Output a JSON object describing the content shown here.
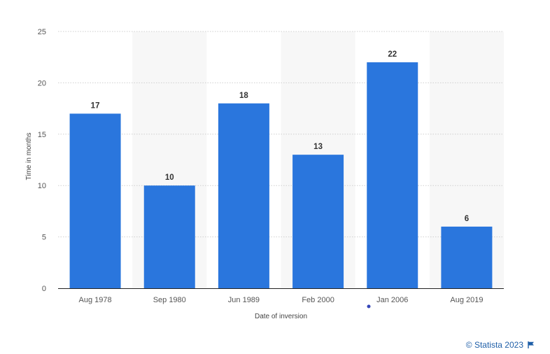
{
  "chart_data": {
    "type": "bar",
    "categories": [
      "Aug 1978",
      "Sep 1980",
      "Jun 1989",
      "Feb 2000",
      "Jan 2006",
      "Aug 2019"
    ],
    "values": [
      17,
      10,
      18,
      13,
      22,
      6
    ],
    "title": "",
    "xlabel": "Date of inversion",
    "ylabel": "Time in months",
    "ylim": [
      0,
      25
    ],
    "yticks": [
      0,
      5,
      10,
      15,
      20,
      25
    ],
    "grid": "horizontal dotted",
    "alternating_bands": true,
    "bar_color": "#2a76dd",
    "band_color": "#f7f7f7",
    "data_labels": true
  },
  "credit": {
    "text": "© Statista 2023",
    "color": "#1f5fa8",
    "icon": "flag-icon"
  },
  "colors": {
    "accent_dot": "#3546b8",
    "axis": "#222222",
    "grid": "#cfcfcf"
  }
}
